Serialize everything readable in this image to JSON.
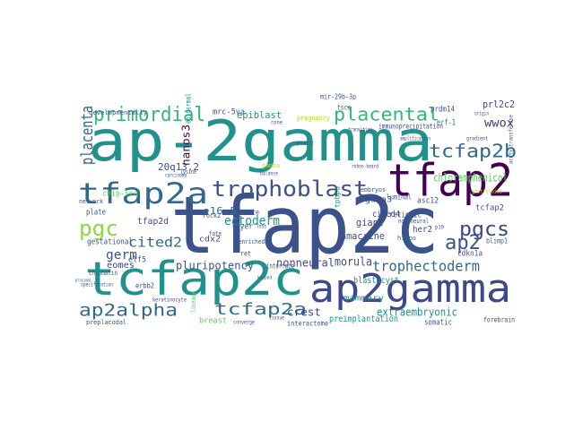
{
  "words": [
    {
      "text": "tfap2c",
      "color": "#3b528b"
    },
    {
      "text": "ap-2gamma",
      "color": "#21918c"
    },
    {
      "text": "tcfap2c",
      "color": "#21918c"
    },
    {
      "text": "ap2gamma",
      "color": "#3e4989"
    },
    {
      "text": "tfap2",
      "color": "#440154"
    },
    {
      "text": "tfap2a",
      "color": "#31688e"
    },
    {
      "text": "trophoblast",
      "color": "#3b528b"
    },
    {
      "text": "primordial",
      "color": "#35b779"
    },
    {
      "text": "placental",
      "color": "#35b779"
    },
    {
      "text": "tcfap2b",
      "color": "#31688e"
    },
    {
      "text": "pgc",
      "color": "#90d743"
    },
    {
      "text": "pgcs",
      "color": "#3e4989"
    },
    {
      "text": "ap2",
      "color": "#3b528b"
    },
    {
      "text": "placenta",
      "color": "#31688e"
    },
    {
      "text": "ap2alpha",
      "color": "#31688e"
    },
    {
      "text": "tcfap2a",
      "color": "#31688e"
    },
    {
      "text": "trophectoderm",
      "color": "#31688e"
    },
    {
      "text": "cited2",
      "color": "#31688e"
    },
    {
      "text": "ectoderm",
      "color": "#21918c"
    },
    {
      "text": "nonneural",
      "color": "#3e4989"
    },
    {
      "text": "chloramphenicol",
      "color": "#5ec962"
    },
    {
      "text": "wwox",
      "color": "#443983"
    },
    {
      "text": "prl2c2",
      "color": "#3e4989"
    },
    {
      "text": "morula",
      "color": "#3b528b"
    },
    {
      "text": "extraembryonic",
      "color": "#21918c"
    },
    {
      "text": "crest",
      "color": "#3e4989"
    },
    {
      "text": "e16.5",
      "color": "#2c728e"
    },
    {
      "text": "20q13.2",
      "color": "#3b528b"
    },
    {
      "text": "nanos3",
      "color": "#440154"
    },
    {
      "text": "epiblast",
      "color": "#21918c"
    },
    {
      "text": "mrc-5va",
      "color": "#3b528b"
    },
    {
      "text": "prdm14",
      "color": "#3b528b"
    },
    {
      "text": "erf-1",
      "color": "#2c728e"
    },
    {
      "text": "giant",
      "color": "#3e4989"
    },
    {
      "text": "amacrine",
      "color": "#3b528b"
    },
    {
      "text": "gata3",
      "color": "#3e4989"
    },
    {
      "text": "luminal",
      "color": "#3b528b"
    },
    {
      "text": "cited4",
      "color": "#3e4989"
    },
    {
      "text": "retinoic",
      "color": "#3b528b"
    },
    {
      "text": "her2",
      "color": "#3e4989"
    },
    {
      "text": "tcfap2",
      "color": "#3b528b"
    },
    {
      "text": "blimp1",
      "color": "#31688e"
    },
    {
      "text": "cdkn1a",
      "color": "#3b528b"
    },
    {
      "text": "asc12",
      "color": "#3e4989"
    },
    {
      "text": "hippo",
      "color": "#31688e"
    },
    {
      "text": "germ",
      "color": "#3b528b"
    },
    {
      "text": "eomes",
      "color": "#3e4989"
    },
    {
      "text": "elf5",
      "color": "#3b528b"
    },
    {
      "text": "pluripotency",
      "color": "#3b528b"
    },
    {
      "text": "cdx2",
      "color": "#3e4989"
    },
    {
      "text": "tfap2d",
      "color": "#3e4989"
    },
    {
      "text": "gestational",
      "color": "#3b528b"
    },
    {
      "text": "plate",
      "color": "#3b528b"
    },
    {
      "text": "layer",
      "color": "#3b528b"
    },
    {
      "text": "mammary",
      "color": "#21918c"
    },
    {
      "text": "blastocyst",
      "color": "#21918c"
    },
    {
      "text": "interface",
      "color": "#3b528b"
    },
    {
      "text": "breast",
      "color": "#5ec962"
    },
    {
      "text": "preimplantation",
      "color": "#21918c"
    },
    {
      "text": "somatic",
      "color": "#3b528b"
    },
    {
      "text": "interactome",
      "color": "#3b528b"
    },
    {
      "text": "forebrain",
      "color": "#3b528b"
    },
    {
      "text": "erbb2",
      "color": "#3b528b"
    },
    {
      "text": "chip-seq",
      "color": "#5ec962"
    },
    {
      "text": "immunoprecipitation",
      "color": "#3e4989"
    },
    {
      "text": "mir-29b-3p",
      "color": "#3b528b"
    },
    {
      "text": "epidermal",
      "color": "#21918c"
    },
    {
      "text": "pregnancy",
      "color": "#b5de2b"
    },
    {
      "text": "rock2",
      "color": "#3b528b"
    },
    {
      "text": "ret",
      "color": "#3b528b"
    },
    {
      "text": "te",
      "color": "#3b528b"
    },
    {
      "text": "tpbpa",
      "color": "#21918c"
    },
    {
      "text": "enriched",
      "color": "#3b528b"
    },
    {
      "text": "fate",
      "color": "#3b528b"
    },
    {
      "text": "lineage",
      "color": "#5ec962"
    },
    {
      "text": "network",
      "color": "#3b528b"
    },
    {
      "text": "chromatin",
      "color": "#3b528b"
    },
    {
      "text": "preplacodal",
      "color": "#3b528b"
    },
    {
      "text": "developmentally",
      "color": "#3b528b"
    },
    {
      "text": "gamma",
      "color": "#b5de2b"
    },
    {
      "text": "lysine",
      "color": "#3b528b"
    },
    {
      "text": "tscs",
      "color": "#3b528b"
    },
    {
      "text": "rohon-beard",
      "color": "#3b528b"
    },
    {
      "text": "non-neural",
      "color": "#3b528b"
    },
    {
      "text": "embryos",
      "color": "#3b528b"
    },
    {
      "text": "p19",
      "color": "#3b528b"
    },
    {
      "text": "transition",
      "color": "#3b528b"
    },
    {
      "text": "acetyltransferase",
      "color": "#3b528b"
    },
    {
      "text": "gradient",
      "color": "#3b528b"
    },
    {
      "text": "gastruloids",
      "color": "#b5de2b"
    },
    {
      "text": "carcinoma",
      "color": "#3b528b"
    },
    {
      "text": "cone",
      "color": "#3b528b"
    },
    {
      "text": "balance",
      "color": "#3b528b"
    },
    {
      "text": "amplification",
      "color": "#3b528b"
    },
    {
      "text": "genetic",
      "color": "#3b528b"
    },
    {
      "text": "origin",
      "color": "#3b528b"
    },
    {
      "text": "kapped",
      "color": "#3b528b"
    },
    {
      "text": "keratinocyte",
      "color": "#3b528b"
    },
    {
      "text": "specification",
      "color": "#3b528b"
    },
    {
      "text": "loss",
      "color": "#3b528b"
    },
    {
      "text": "tissue",
      "color": "#3b528b"
    },
    {
      "text": "converge",
      "color": "#3b528b"
    },
    {
      "text": "proximal",
      "color": "#3b528b"
    }
  ]
}
